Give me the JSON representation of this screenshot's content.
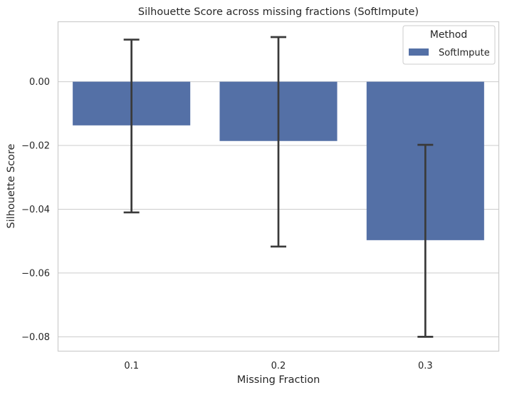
{
  "chart_data": {
    "type": "bar",
    "title": "Silhouette Score across missing fractions (SoftImpute)",
    "xlabel": "Missing Fraction",
    "ylabel": "Silhouette Score",
    "categories": [
      "0.1",
      "0.2",
      "0.3"
    ],
    "series": [
      {
        "name": "SoftImpute",
        "color": "#5470a6",
        "values": [
          -0.0137,
          -0.0186,
          -0.0497
        ],
        "error_low": [
          -0.041,
          -0.0517,
          -0.08
        ],
        "error_high": [
          0.0132,
          0.014,
          -0.0198
        ]
      }
    ],
    "ylim": [
      -0.0845,
      0.0188
    ],
    "yticks": [
      0.0,
      -0.02,
      -0.04,
      -0.06,
      -0.08
    ],
    "ytick_labels": [
      "0.00",
      "−0.02",
      "−0.04",
      "−0.06",
      "−0.08"
    ],
    "legend": {
      "title": "Method",
      "position": "top-right"
    },
    "grid": true,
    "grid_axis": "y"
  }
}
